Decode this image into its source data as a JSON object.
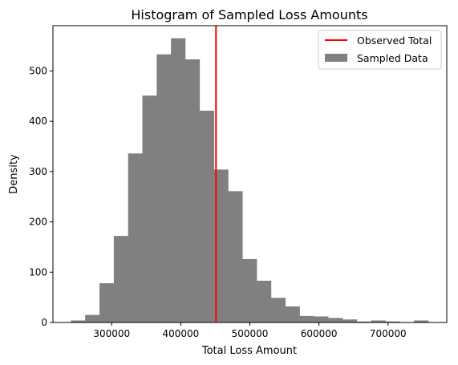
{
  "chart_data": {
    "type": "bar",
    "title": "Histogram of Sampled Loss Amounts",
    "xlabel": "Total Loss Amount",
    "ylabel": "Density",
    "xlim": [
      215000,
      785000
    ],
    "ylim": [
      0,
      590
    ],
    "xticks": [
      300000,
      400000,
      500000,
      600000,
      700000
    ],
    "yticks": [
      0,
      100,
      200,
      300,
      400,
      500
    ],
    "grid": false,
    "legend_position": "top-right",
    "observed_total": 451000,
    "bins": {
      "start": 241000,
      "width": 20690,
      "heights": [
        4,
        15,
        78,
        172,
        336,
        451,
        533,
        565,
        523,
        421,
        304,
        261,
        126,
        83,
        49,
        32,
        13,
        12,
        9,
        6,
        2,
        4,
        2,
        0,
        4
      ]
    },
    "colors": {
      "histogram": "#808080",
      "observed": "#ff0000"
    },
    "legend": [
      {
        "label": "Observed Total",
        "kind": "line",
        "color": "#ff0000"
      },
      {
        "label": "Sampled Data",
        "kind": "patch",
        "color": "#808080"
      }
    ]
  }
}
